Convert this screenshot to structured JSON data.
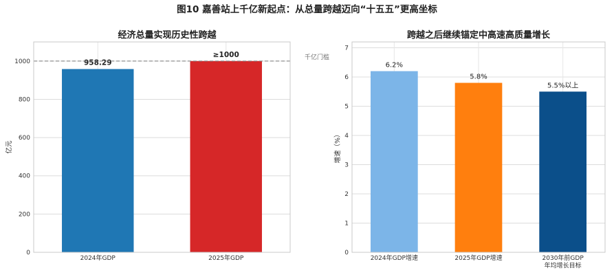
{
  "suptitle": "图10 嘉善站上千亿新起点：从总量跨越迈向“十五五”更高坐标",
  "chart_data": [
    {
      "type": "bar",
      "title": "经济总量实现历史性跨越",
      "ylabel": "亿元",
      "xlabel": "",
      "categories": [
        "2024年GDP",
        "2025年GDP"
      ],
      "values": [
        958.29,
        1000
      ],
      "value_labels": [
        "958.29",
        "≥1000"
      ],
      "bar_colors": [
        "#1f77b4",
        "#d62728"
      ],
      "ylim": [
        0,
        1100
      ],
      "yticks": [
        0,
        200,
        400,
        600,
        800,
        1000
      ],
      "grid": true,
      "reference_line": {
        "value": 1000,
        "label": "千亿门槛",
        "color": "#888888",
        "style": "dashed"
      }
    },
    {
      "type": "bar",
      "title": "跨越之后继续锚定中高速高质量增长",
      "ylabel": "增速（%）",
      "xlabel": "",
      "categories": [
        "2024年GDP增速",
        "2025年GDP增速",
        "2030年前GDP\n年均增长目标"
      ],
      "values": [
        6.2,
        5.8,
        5.5
      ],
      "value_labels": [
        "6.2%",
        "5.8%",
        "5.5%以上"
      ],
      "bar_colors": [
        "#7cb5e8",
        "#ff7f0e",
        "#0b4f8a"
      ],
      "ylim": [
        0,
        7.2
      ],
      "yticks": [
        0,
        1,
        2,
        3,
        4,
        5,
        6,
        7
      ],
      "grid": true
    }
  ]
}
